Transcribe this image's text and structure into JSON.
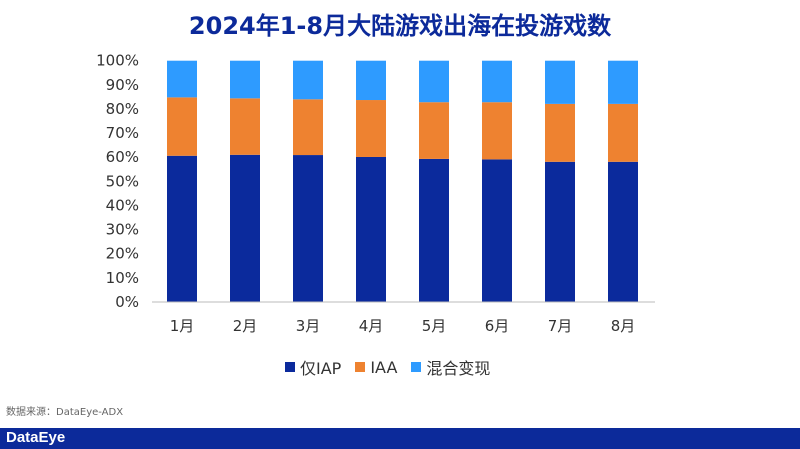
{
  "chart_data": {
    "type": "bar",
    "stacked": "percent",
    "title": "2024年1-8月大陆游戏出海在投游戏数",
    "categories": [
      "1月",
      "2月",
      "3月",
      "4月",
      "5月",
      "6月",
      "7月",
      "8月"
    ],
    "series": [
      {
        "name": "仅IAP",
        "color": "#0b2a9c",
        "values": [
          60.6,
          61.0,
          60.9,
          60.1,
          59.3,
          59.1,
          58.1,
          58.1
        ]
      },
      {
        "name": "IAA",
        "color": "#ee8230",
        "values": [
          24.2,
          23.4,
          23.1,
          23.6,
          23.5,
          23.7,
          24.0,
          24.0
        ]
      },
      {
        "name": "混合变现",
        "color": "#2e9bff",
        "values": [
          15.2,
          15.6,
          16.0,
          16.3,
          17.2,
          17.2,
          17.9,
          17.9
        ]
      }
    ],
    "yticks": [
      "0%",
      "10%",
      "20%",
      "30%",
      "40%",
      "50%",
      "60%",
      "70%",
      "80%",
      "90%",
      "100%"
    ],
    "ylim": [
      0,
      100
    ],
    "grid": false,
    "legend": "bottom"
  },
  "source": "数据来源：DataEye-ADX",
  "watermark": "DataEye",
  "footer_logo": "DataEye"
}
